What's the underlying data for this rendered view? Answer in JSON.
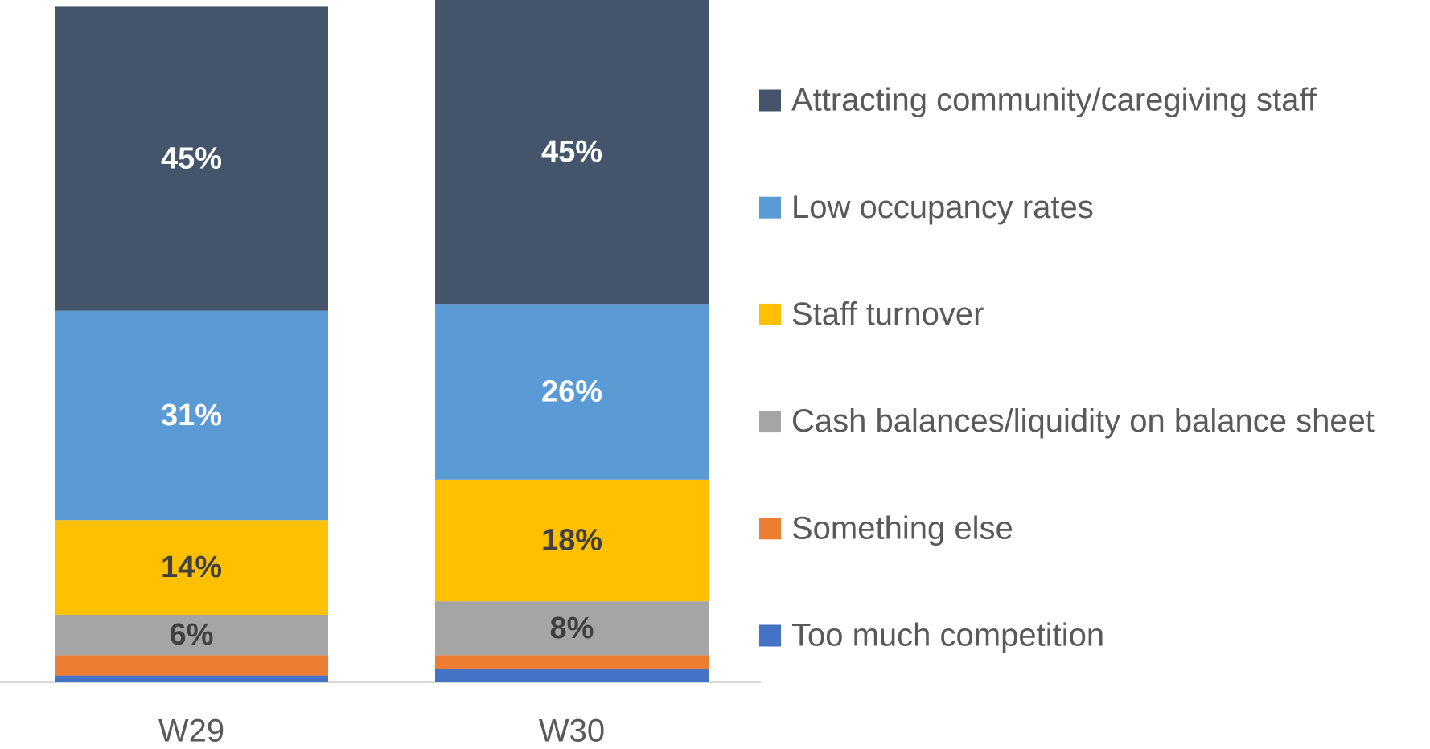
{
  "chart_data": {
    "type": "stacked_bar",
    "categories": [
      "W29",
      "W30"
    ],
    "ylim": [
      0,
      101
    ],
    "legend": "right",
    "series": [
      {
        "name": "Attracting community/caregiving staff",
        "color": "#44546a",
        "label_color": "#ffffff",
        "values": [
          45,
          45
        ],
        "value_labels": [
          "45%",
          "45%"
        ]
      },
      {
        "name": "Low occupancy rates",
        "color": "#5b9bd5",
        "label_color": "#ffffff",
        "values": [
          31,
          26
        ],
        "value_labels": [
          "31%",
          "26%"
        ]
      },
      {
        "name": "Staff turnover",
        "color": "#ffc000",
        "label_color": "#404040",
        "values": [
          14,
          18
        ],
        "value_labels": [
          "14%",
          "18%"
        ]
      },
      {
        "name": "Cash balances/liquidity on balance sheet",
        "color": "#a5a5a5",
        "label_color": "#404040",
        "values": [
          6,
          8
        ],
        "value_labels": [
          "6%",
          "8%"
        ]
      },
      {
        "name": "Something else",
        "color": "#ed7d31",
        "label_color": "#404040",
        "values": [
          3,
          2
        ],
        "value_labels": [
          null,
          null
        ]
      },
      {
        "name": "Too much competition",
        "color": "#4472c4",
        "label_color": "#404040",
        "values": [
          1,
          2
        ],
        "value_labels": [
          null,
          null
        ]
      }
    ]
  }
}
